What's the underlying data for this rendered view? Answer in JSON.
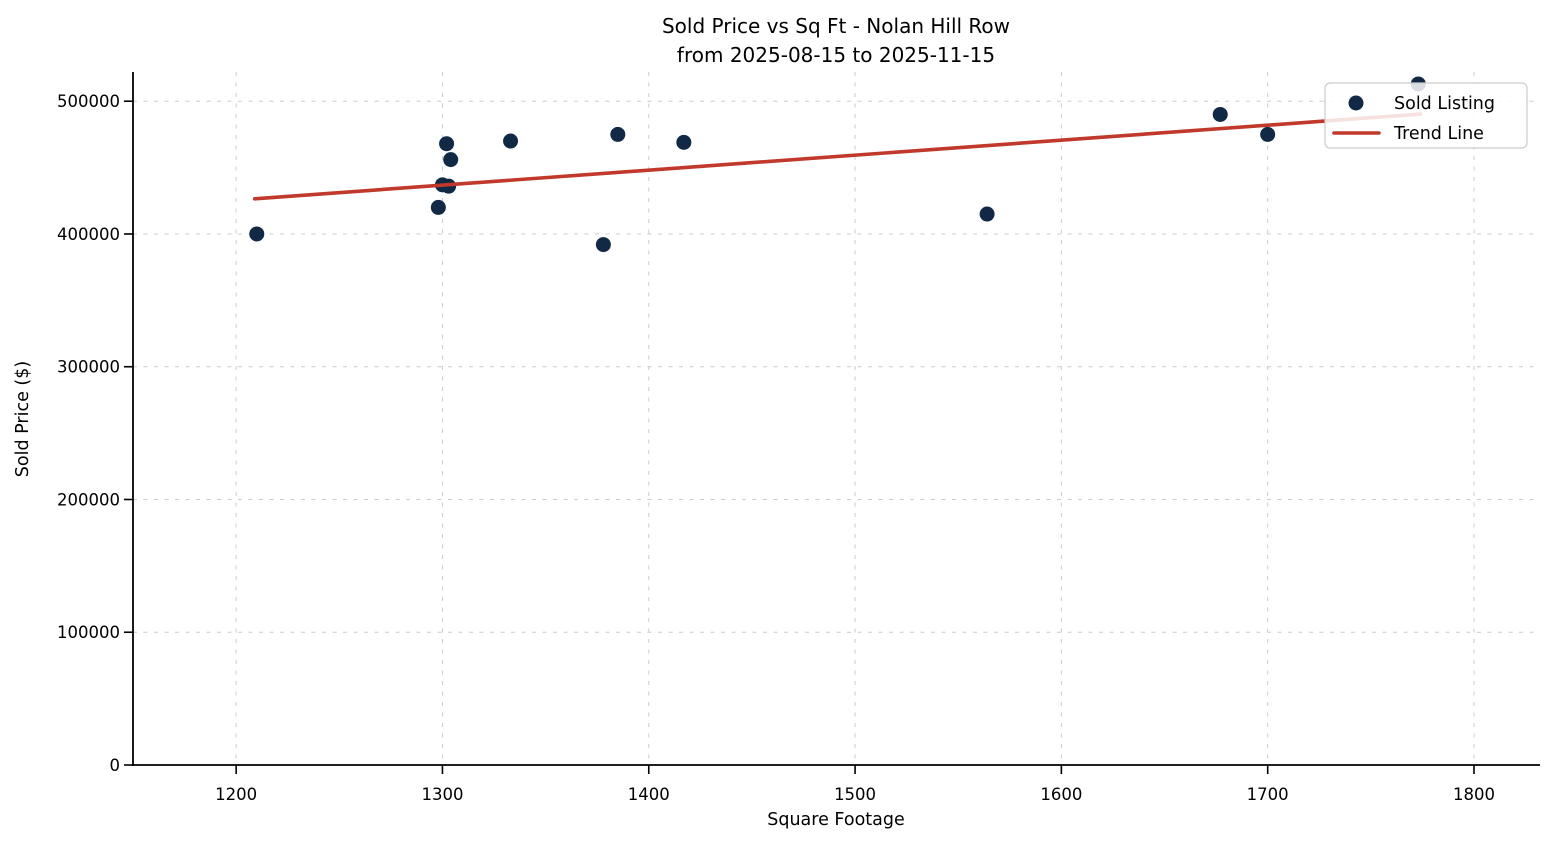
{
  "figure": {
    "title_line1": "Sold Price vs Sq Ft - Nolan Hill Row",
    "title_line2": "from 2025-08-15 to 2025-11-15",
    "xlabel": "Square Footage",
    "ylabel": "Sold Price ($)"
  },
  "chart_data": {
    "type": "scatter",
    "title": "Sold Price vs Sq Ft - Nolan Hill Row\nfrom 2025-08-15 to 2025-11-15",
    "xlabel": "Square Footage",
    "ylabel": "Sold Price ($)",
    "xlim": [
      1150,
      1832
    ],
    "ylim": [
      0,
      522000
    ],
    "xticks": [
      1200,
      1300,
      1400,
      1500,
      1600,
      1700,
      1800
    ],
    "yticks": [
      0,
      100000,
      200000,
      300000,
      400000,
      500000
    ],
    "grid": true,
    "legend_position": "upper right",
    "series": [
      {
        "name": "Sold Listing",
        "type": "scatter",
        "color": "#122945",
        "marker_radius": 7.5,
        "points": [
          [
            1210,
            400000
          ],
          [
            1298,
            420000
          ],
          [
            1302,
            468000
          ],
          [
            1304,
            456000
          ],
          [
            1300,
            437000
          ],
          [
            1303,
            436000
          ],
          [
            1333,
            470000
          ],
          [
            1378,
            392000
          ],
          [
            1385,
            475000
          ],
          [
            1417,
            469000
          ],
          [
            1564,
            415000
          ],
          [
            1677,
            490000
          ],
          [
            1700,
            475000
          ],
          [
            1773,
            513000
          ]
        ]
      },
      {
        "name": "Trend Line",
        "type": "line",
        "color": "#c0392b",
        "line_width": 3.6,
        "points": [
          [
            1209,
            426500
          ],
          [
            1774,
            490300
          ]
        ]
      }
    ]
  },
  "legend": {
    "items": [
      {
        "label": "Sold Listing",
        "marker": "dot"
      },
      {
        "label": "Trend Line",
        "marker": "line"
      }
    ]
  },
  "colors": {
    "point": "#122945",
    "trend": "#c0392b",
    "grid": "#cccccc",
    "spine": "#000000",
    "background": "#ffffff"
  }
}
